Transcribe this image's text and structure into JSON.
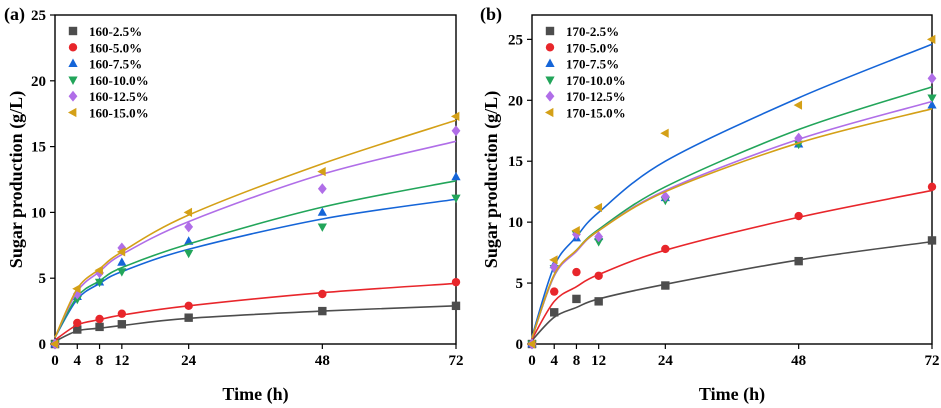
{
  "chart_data": [
    {
      "type": "scatter",
      "panel_label": "(a)",
      "xlabel": "Time (h)",
      "ylabel": "Sugar production (g/L)",
      "xlim": [
        0,
        72
      ],
      "ylim": [
        0,
        25
      ],
      "xticks": [
        0,
        4,
        8,
        12,
        24,
        48,
        72
      ],
      "yticks": [
        0,
        5,
        10,
        15,
        20,
        25
      ],
      "legend_position": "top-left",
      "x": [
        0,
        4,
        8,
        12,
        24,
        48,
        72
      ],
      "series": [
        {
          "name": "160-2.5%",
          "color": "#4d4d4d",
          "marker": "square",
          "values": [
            0,
            1.1,
            1.3,
            1.5,
            2.0,
            2.5,
            2.9
          ],
          "fit": [
            0.2,
            1.0,
            1.2,
            1.4,
            1.95,
            2.5,
            2.9
          ]
        },
        {
          "name": "160-5.0%",
          "color": "#e8262b",
          "marker": "circle",
          "values": [
            0,
            1.6,
            1.9,
            2.3,
            2.9,
            3.8,
            4.7
          ],
          "fit": [
            0.3,
            1.45,
            1.85,
            2.2,
            2.9,
            3.9,
            4.6
          ]
        },
        {
          "name": "160-7.5%",
          "color": "#1565d8",
          "marker": "triangle-up",
          "values": [
            0,
            3.6,
            4.7,
            6.2,
            7.8,
            10.0,
            12.7
          ],
          "fit": [
            0.5,
            3.4,
            4.6,
            5.5,
            7.2,
            9.5,
            11.0
          ]
        },
        {
          "name": "160-10.0%",
          "color": "#22a55a",
          "marker": "triangle-down",
          "values": [
            0,
            3.4,
            4.7,
            5.5,
            6.9,
            8.9,
            11.1
          ],
          "fit": [
            0.5,
            3.6,
            4.8,
            5.8,
            7.6,
            10.4,
            12.4
          ]
        },
        {
          "name": "160-12.5%",
          "color": "#b06ee8",
          "marker": "diamond",
          "values": [
            0,
            3.8,
            5.4,
            7.3,
            8.9,
            11.8,
            16.2
          ],
          "fit": [
            0.5,
            4.0,
            5.5,
            6.8,
            9.3,
            12.9,
            15.4
          ]
        },
        {
          "name": "160-15.0%",
          "color": "#d4a017",
          "marker": "triangle-left",
          "values": [
            0,
            4.2,
            5.6,
            7.0,
            10.0,
            13.1,
            17.3
          ],
          "fit": [
            0.5,
            4.2,
            5.7,
            7.0,
            9.8,
            13.7,
            17.0
          ]
        }
      ]
    },
    {
      "type": "scatter",
      "panel_label": "(b)",
      "xlabel": "Time (h)",
      "ylabel": "Sugar production (g/L)",
      "xlim": [
        0,
        72
      ],
      "ylim": [
        0,
        27
      ],
      "xticks": [
        0,
        4,
        8,
        12,
        24,
        48,
        72
      ],
      "yticks": [
        0,
        5,
        10,
        15,
        20,
        25
      ],
      "legend_position": "top-left",
      "x": [
        0,
        4,
        8,
        12,
        24,
        48,
        72
      ],
      "series": [
        {
          "name": "170-2.5%",
          "color": "#4d4d4d",
          "marker": "square",
          "values": [
            0,
            2.6,
            3.7,
            3.5,
            4.8,
            6.8,
            8.5
          ],
          "fit": [
            0.3,
            2.2,
            3.0,
            3.7,
            4.9,
            6.9,
            8.4
          ]
        },
        {
          "name": "170-5.0%",
          "color": "#e8262b",
          "marker": "circle",
          "values": [
            0,
            4.3,
            5.9,
            5.6,
            7.8,
            10.5,
            12.9
          ],
          "fit": [
            0.4,
            3.5,
            4.7,
            5.7,
            7.7,
            10.4,
            12.6
          ]
        },
        {
          "name": "170-7.5%",
          "color": "#1565d8",
          "marker": "triangle-up",
          "values": [
            0,
            6.5,
            8.7,
            8.8,
            12.0,
            16.4,
            19.6
          ],
          "fit": [
            0.6,
            6.4,
            8.8,
            10.8,
            15.0,
            20.2,
            24.6
          ]
        },
        {
          "name": "170-10.0%",
          "color": "#22a55a",
          "marker": "triangle-down",
          "values": [
            0,
            6.2,
            9.0,
            8.4,
            11.8,
            16.4,
            20.2
          ],
          "fit": [
            0.5,
            5.6,
            7.7,
            9.4,
            12.9,
            17.6,
            21.1
          ]
        },
        {
          "name": "170-12.5%",
          "color": "#b06ee8",
          "marker": "diamond",
          "values": [
            0,
            6.3,
            9.0,
            8.8,
            12.1,
            16.9,
            21.8
          ],
          "fit": [
            0.5,
            5.6,
            7.6,
            9.3,
            12.6,
            16.8,
            19.9
          ]
        },
        {
          "name": "170-15.0%",
          "color": "#d4a017",
          "marker": "triangle-left",
          "values": [
            0,
            6.9,
            9.3,
            11.2,
            17.3,
            19.6,
            25.0
          ],
          "fit": [
            0.5,
            5.7,
            7.7,
            9.3,
            12.5,
            16.5,
            19.3
          ]
        }
      ]
    }
  ]
}
